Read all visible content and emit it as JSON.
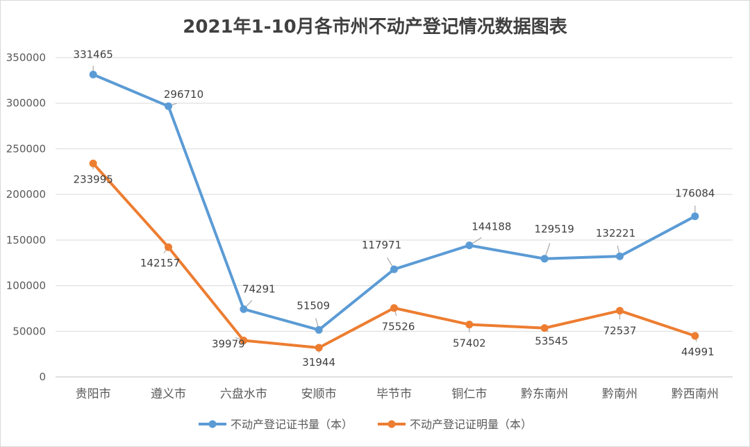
{
  "chart_data": {
    "type": "line",
    "title": "2021年1-10月各市州不动产登记情况数据图表",
    "categories": [
      "贵阳市",
      "遵义市",
      "六盘水市",
      "安顺市",
      "毕节市",
      "铜仁市",
      "黔东南州",
      "黔南州",
      "黔西南州"
    ],
    "ylim": [
      0,
      350000
    ],
    "yticks": [
      0,
      50000,
      100000,
      150000,
      200000,
      250000,
      300000,
      350000
    ],
    "grid": true,
    "legend_position": "bottom",
    "series": [
      {
        "name": "不动产登记证书量（本）",
        "color": "#5b9bd5",
        "values": [
          331465,
          296710,
          74291,
          51509,
          117971,
          144188,
          129519,
          132221,
          176084
        ]
      },
      {
        "name": "不动产登记证明量（本）",
        "color": "#ed7d31",
        "values": [
          233995,
          142157,
          39979,
          31944,
          75526,
          57402,
          53545,
          72537,
          44991
        ]
      }
    ]
  }
}
